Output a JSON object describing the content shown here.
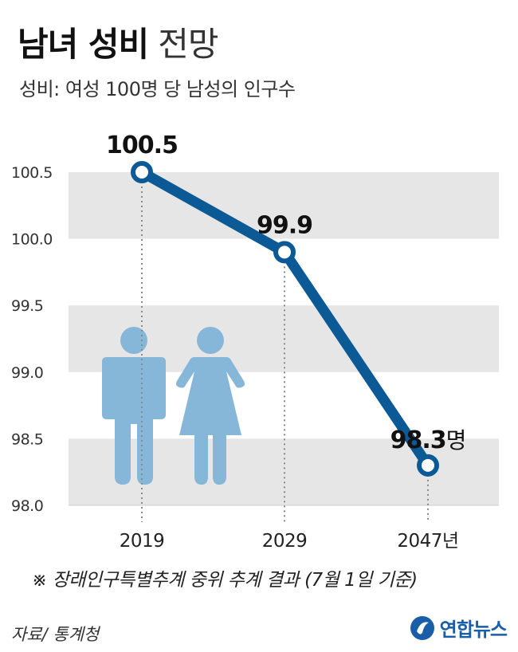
{
  "header": {
    "title_bold": "남녀 성비",
    "title_light": "전망",
    "subtitle": "성비: 여성 100명 당 남성의 인구수"
  },
  "chart_data": {
    "type": "line",
    "x": [
      "2019",
      "2029",
      "2047"
    ],
    "x_tick_labels": [
      "2019",
      "2029",
      "2047년"
    ],
    "y_ticks": [
      "98.0",
      "98.5",
      "99.0",
      "99.5",
      "100.0",
      "100.5"
    ],
    "ylim": [
      98.0,
      100.5
    ],
    "series": [
      {
        "values": [
          100.5,
          99.9,
          98.3
        ],
        "labels": [
          "100.5",
          "99.9",
          "98.3"
        ],
        "unit": "명"
      }
    ],
    "grid": "alternating horizontal bands",
    "colors": {
      "line": "#0b5a96",
      "band": "#e6e6e6",
      "figure": "#86b6d8"
    },
    "decoration": [
      "male-figure-icon",
      "female-figure-icon"
    ]
  },
  "footer": {
    "note": "※ 장래인구특별추계 중위 추계 결과 (7월 1일 기준)",
    "source": "자료/ 통계청",
    "logo_text": "연합뉴스",
    "logo_color": "#1a5ea8"
  }
}
